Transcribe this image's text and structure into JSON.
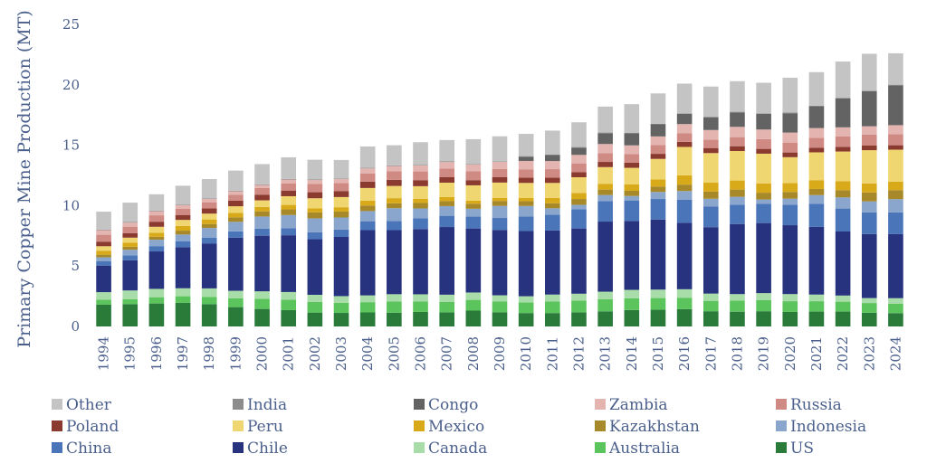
{
  "chart_data": {
    "type": "bar",
    "stacked": true,
    "title": "",
    "xlabel": "",
    "ylabel": "Primary Copper Mine Production (MT)",
    "ylim": [
      0,
      25
    ],
    "yticks": [
      0,
      5,
      10,
      15,
      20,
      25
    ],
    "categories": [
      "1994",
      "1995",
      "1996",
      "1997",
      "1998",
      "1999",
      "2000",
      "2001",
      "2002",
      "2003",
      "2004",
      "2005",
      "2006",
      "2007",
      "2008",
      "2009",
      "2010",
      "2011",
      "2012",
      "2013",
      "2014",
      "2015",
      "2016",
      "2017",
      "2018",
      "2019",
      "2020",
      "2021",
      "2022",
      "2023",
      "2024"
    ],
    "legend_position": "bottom",
    "series": [
      {
        "name": "US",
        "color": "#2a7a3a",
        "values": [
          1.8,
          1.85,
          1.9,
          1.95,
          1.85,
          1.6,
          1.45,
          1.35,
          1.15,
          1.12,
          1.16,
          1.14,
          1.2,
          1.17,
          1.31,
          1.18,
          1.11,
          1.11,
          1.17,
          1.25,
          1.36,
          1.38,
          1.43,
          1.26,
          1.22,
          1.26,
          1.2,
          1.23,
          1.23,
          1.13,
          1.1
        ]
      },
      {
        "name": "Australia",
        "color": "#5cc45c",
        "values": [
          0.42,
          0.4,
          0.52,
          0.55,
          0.6,
          0.74,
          0.83,
          0.87,
          0.87,
          0.83,
          0.85,
          0.93,
          0.86,
          0.87,
          0.89,
          0.9,
          0.87,
          0.96,
          0.96,
          1.0,
          0.97,
          0.97,
          0.95,
          0.86,
          0.92,
          0.93,
          0.89,
          0.86,
          0.82,
          0.81,
          0.79
        ]
      },
      {
        "name": "Canada",
        "color": "#a8dca8",
        "values": [
          0.62,
          0.73,
          0.69,
          0.66,
          0.7,
          0.61,
          0.63,
          0.63,
          0.6,
          0.56,
          0.56,
          0.6,
          0.6,
          0.59,
          0.61,
          0.5,
          0.52,
          0.57,
          0.58,
          0.63,
          0.7,
          0.7,
          0.7,
          0.6,
          0.54,
          0.57,
          0.59,
          0.55,
          0.51,
          0.41,
          0.45
        ]
      },
      {
        "name": "Chile",
        "color": "#27337e",
        "values": [
          2.2,
          2.49,
          3.1,
          3.4,
          3.7,
          4.4,
          4.6,
          4.7,
          4.6,
          4.9,
          5.4,
          5.3,
          5.4,
          5.6,
          5.3,
          5.4,
          5.4,
          5.3,
          5.4,
          5.8,
          5.7,
          5.8,
          5.5,
          5.5,
          5.8,
          5.8,
          5.7,
          5.6,
          5.3,
          5.3,
          5.3
        ]
      },
      {
        "name": "China",
        "color": "#4a75b8",
        "values": [
          0.35,
          0.42,
          0.44,
          0.5,
          0.49,
          0.52,
          0.59,
          0.59,
          0.57,
          0.61,
          0.74,
          0.76,
          0.89,
          0.93,
          0.98,
          1.0,
          1.2,
          1.3,
          1.6,
          1.7,
          1.7,
          1.7,
          1.9,
          1.7,
          1.6,
          1.6,
          1.7,
          1.9,
          1.9,
          1.8,
          1.8
        ]
      },
      {
        "name": "Indonesia",
        "color": "#8aa6cc",
        "values": [
          0.33,
          0.46,
          0.53,
          0.55,
          0.81,
          0.79,
          1.0,
          1.08,
          1.16,
          1.0,
          0.84,
          1.06,
          0.82,
          0.8,
          0.65,
          1.0,
          0.87,
          0.54,
          0.36,
          0.5,
          0.37,
          0.58,
          0.73,
          0.65,
          0.65,
          0.35,
          0.5,
          0.73,
          0.92,
          0.9,
          1.1
        ]
      },
      {
        "name": "Kazakhstan",
        "color": "#a8892a",
        "values": [
          0.22,
          0.25,
          0.24,
          0.32,
          0.33,
          0.37,
          0.43,
          0.47,
          0.49,
          0.49,
          0.46,
          0.4,
          0.45,
          0.41,
          0.42,
          0.41,
          0.4,
          0.42,
          0.48,
          0.45,
          0.43,
          0.45,
          0.53,
          0.59,
          0.6,
          0.56,
          0.55,
          0.51,
          0.6,
          0.74,
          0.74
        ]
      },
      {
        "name": "Mexico",
        "color": "#d8aa1a",
        "values": [
          0.33,
          0.34,
          0.34,
          0.39,
          0.38,
          0.38,
          0.36,
          0.37,
          0.33,
          0.36,
          0.41,
          0.43,
          0.34,
          0.34,
          0.25,
          0.24,
          0.26,
          0.44,
          0.5,
          0.48,
          0.52,
          0.59,
          0.77,
          0.74,
          0.75,
          0.77,
          0.73,
          0.73,
          0.75,
          0.75,
          0.7
        ]
      },
      {
        "name": "Peru",
        "color": "#f0d670",
        "values": [
          0.37,
          0.41,
          0.49,
          0.5,
          0.48,
          0.54,
          0.55,
          0.72,
          0.84,
          0.84,
          1.04,
          1.01,
          1.05,
          1.19,
          1.27,
          1.28,
          1.25,
          1.24,
          1.3,
          1.38,
          1.38,
          1.7,
          2.35,
          2.45,
          2.44,
          2.46,
          2.15,
          2.3,
          2.45,
          2.75,
          2.65
        ]
      },
      {
        "name": "Poland",
        "color": "#8b3a30",
        "values": [
          0.38,
          0.38,
          0.42,
          0.41,
          0.44,
          0.46,
          0.45,
          0.47,
          0.5,
          0.5,
          0.53,
          0.51,
          0.5,
          0.45,
          0.43,
          0.44,
          0.43,
          0.43,
          0.43,
          0.43,
          0.42,
          0.42,
          0.42,
          0.42,
          0.4,
          0.4,
          0.39,
          0.39,
          0.39,
          0.38,
          0.37
        ]
      },
      {
        "name": "Russia",
        "color": "#d08a84",
        "values": [
          0.57,
          0.53,
          0.53,
          0.5,
          0.5,
          0.5,
          0.58,
          0.6,
          0.7,
          0.65,
          0.68,
          0.7,
          0.72,
          0.73,
          0.75,
          0.68,
          0.7,
          0.71,
          0.72,
          0.72,
          0.73,
          0.73,
          0.7,
          0.7,
          0.75,
          0.8,
          0.82,
          0.82,
          0.85,
          0.9,
          0.92
        ]
      },
      {
        "name": "Zambia",
        "color": "#e4b4b0",
        "values": [
          0.38,
          0.34,
          0.34,
          0.32,
          0.28,
          0.28,
          0.24,
          0.31,
          0.31,
          0.35,
          0.41,
          0.44,
          0.51,
          0.53,
          0.55,
          0.6,
          0.69,
          0.67,
          0.7,
          0.76,
          0.71,
          0.71,
          0.77,
          0.79,
          0.85,
          0.8,
          0.83,
          0.8,
          0.76,
          0.7,
          0.74
        ]
      },
      {
        "name": "Congo",
        "color": "#636363",
        "values": [
          0,
          0,
          0,
          0,
          0,
          0,
          0,
          0,
          0,
          0,
          0,
          0,
          0,
          0,
          0,
          0,
          0.35,
          0.5,
          0.6,
          0.9,
          1.0,
          1.0,
          0.85,
          1.05,
          1.2,
          1.3,
          1.6,
          1.8,
          2.4,
          2.9,
          3.3
        ]
      },
      {
        "name": "India",
        "color": "#8c8c8c",
        "values": [
          0.05,
          0.05,
          0.05,
          0.05,
          0.05,
          0.05,
          0.05,
          0.05,
          0.05,
          0.05,
          0.05,
          0.05,
          0.05,
          0.05,
          0.05,
          0.05,
          0.05,
          0.05,
          0.05,
          0.05,
          0.05,
          0.05,
          0.05,
          0.05,
          0.05,
          0.05,
          0.05,
          0.05,
          0.05,
          0.05,
          0.05
        ]
      },
      {
        "name": "Other",
        "color": "#c4c4c4",
        "values": [
          1.48,
          1.6,
          1.35,
          1.55,
          1.59,
          1.66,
          1.68,
          1.79,
          1.63,
          1.52,
          1.77,
          1.67,
          1.86,
          1.77,
          2.04,
          2.06,
          1.84,
          1.97,
          2.05,
          2.15,
          2.36,
          2.51,
          2.45,
          2.5,
          2.53,
          2.52,
          2.89,
          2.78,
          3.0,
          3.05,
          2.6
        ]
      }
    ]
  }
}
